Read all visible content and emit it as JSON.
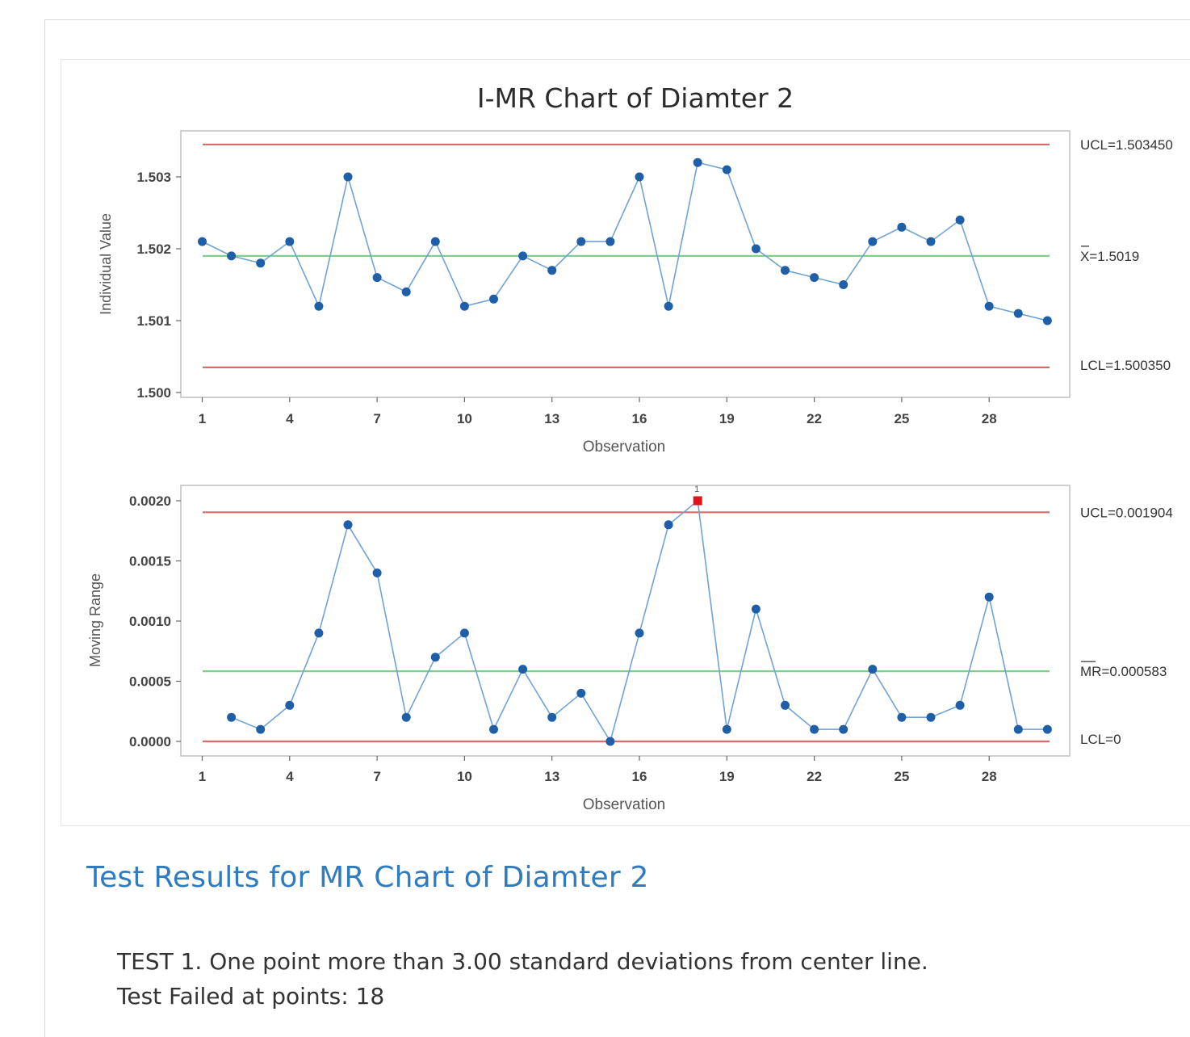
{
  "chart_data": [
    {
      "type": "line",
      "title": "I-MR Chart of Diamter 2",
      "panel": "individuals",
      "xlabel": "Observation",
      "ylabel": "Individual Value",
      "xticks": [
        1,
        4,
        7,
        10,
        13,
        16,
        19,
        22,
        25,
        28
      ],
      "yticks": [
        "1.500",
        "1.501",
        "1.502",
        "1.503"
      ],
      "ylim": [
        1.5,
        1.5035
      ],
      "x": [
        1,
        2,
        3,
        4,
        5,
        6,
        7,
        8,
        9,
        10,
        11,
        12,
        13,
        14,
        15,
        16,
        17,
        18,
        19,
        20,
        21,
        22,
        23,
        24,
        25,
        26,
        27,
        28,
        29,
        30
      ],
      "values": [
        1.5021,
        1.5019,
        1.5018,
        1.5021,
        1.5012,
        1.503,
        1.5016,
        1.5014,
        1.5021,
        1.5012,
        1.5013,
        1.5019,
        1.5017,
        1.5021,
        1.5021,
        1.503,
        1.5012,
        1.5032,
        1.5031,
        1.502,
        1.5017,
        1.5016,
        1.5015,
        1.5021,
        1.5023,
        1.5021,
        1.5024,
        1.5012,
        1.5011,
        1.501
      ],
      "limits": {
        "ucl": 1.50345,
        "ucl_label": "UCL=1.503450",
        "center": 1.5019,
        "center_label": "X=1.5019",
        "lcl": 1.50035,
        "lcl_label": "LCL=1.500350"
      },
      "colors": {
        "series": "#1f5fa8",
        "line": "#6fa3d8",
        "limit": "#d86a6a",
        "center": "#7fcf8a"
      }
    },
    {
      "type": "line",
      "panel": "moving-range",
      "xlabel": "Observation",
      "ylabel": "Moving Range",
      "xticks": [
        1,
        4,
        7,
        10,
        13,
        16,
        19,
        22,
        25,
        28
      ],
      "yticks": [
        "0.0000",
        "0.0005",
        "0.0010",
        "0.0015",
        "0.0020"
      ],
      "ylim": [
        0,
        0.002
      ],
      "x": [
        2,
        3,
        4,
        5,
        6,
        7,
        8,
        9,
        10,
        11,
        12,
        13,
        14,
        15,
        16,
        17,
        18,
        19,
        20,
        21,
        22,
        23,
        24,
        25,
        26,
        27,
        28,
        29,
        30
      ],
      "values": [
        0.0002,
        0.0001,
        0.0003,
        0.0009,
        0.0018,
        0.0014,
        0.0002,
        0.0007,
        0.0009,
        0.0001,
        0.0006,
        0.0002,
        0.0004,
        0,
        0.0009,
        0.0018,
        0.002,
        0.0001,
        0.0011,
        0.0003,
        0.0001,
        0.0001,
        0.0006,
        0.0002,
        0.0002,
        0.0003,
        0.0012,
        0.0001,
        0.0001
      ],
      "flagged_points": [
        18
      ],
      "flag_marker": "1",
      "limits": {
        "ucl": 0.001904,
        "ucl_label": "UCL=0.001904",
        "center": 0.000583,
        "center_label": "MR=0.000583",
        "lcl": 0,
        "lcl_label": "LCL=0"
      },
      "colors": {
        "series": "#1f5fa8",
        "line": "#6fa3d8",
        "limit": "#d86a6a",
        "center": "#7fcf8a",
        "flag": "#e0141b"
      }
    }
  ],
  "results": {
    "title": "Test Results for MR Chart of Diamter 2",
    "line1": "TEST 1. One point more than 3.00 standard deviations from center line.",
    "line2": "Test Failed at points:  18"
  }
}
